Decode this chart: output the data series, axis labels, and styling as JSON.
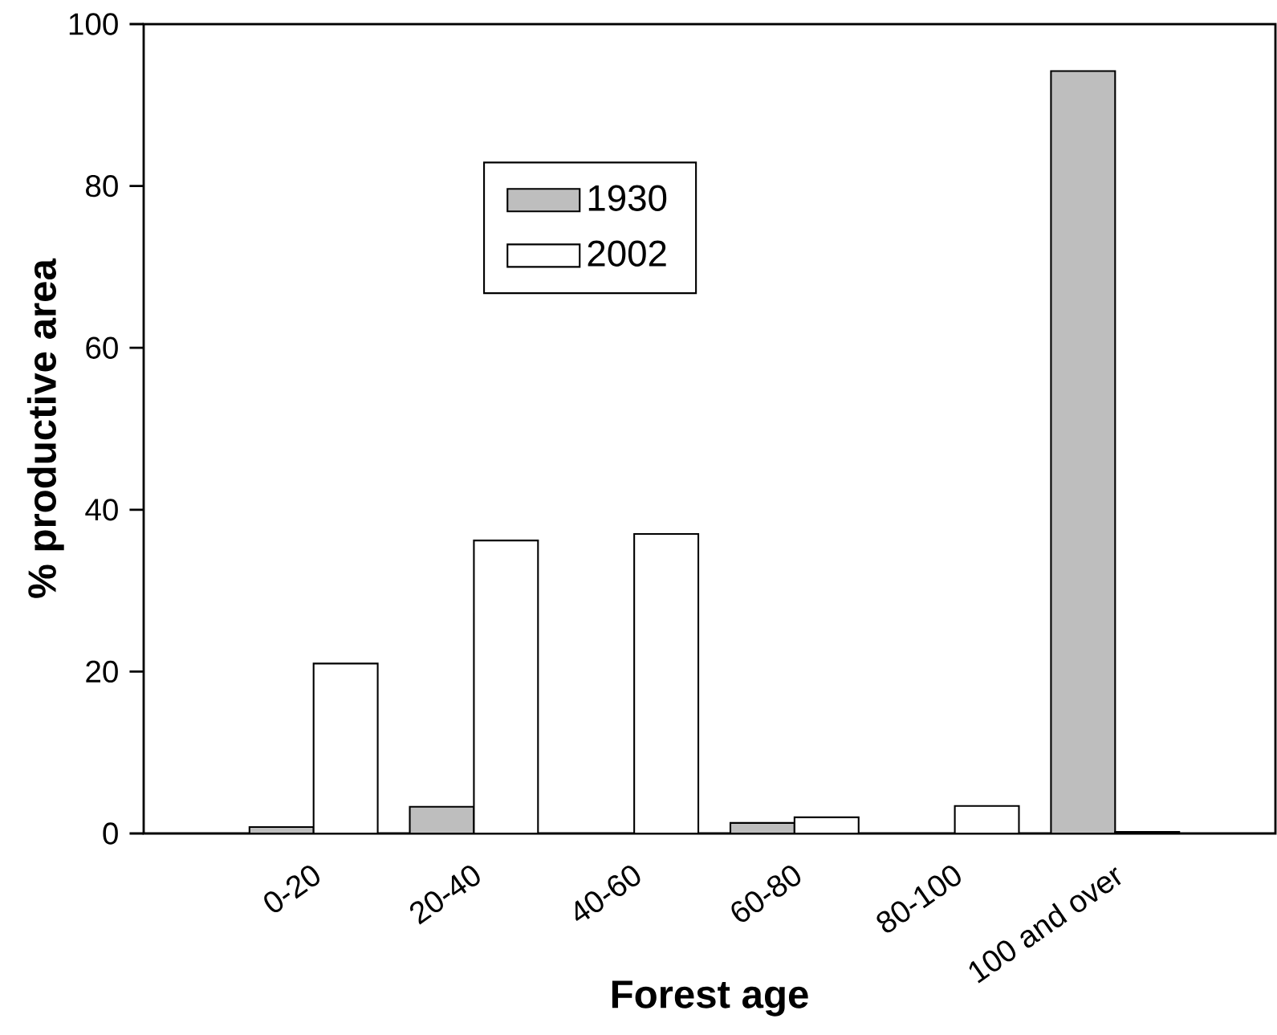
{
  "chart_data": {
    "type": "bar",
    "xlabel": "Forest age",
    "ylabel": "% productive area",
    "categories": [
      "0-20",
      "20-40",
      "40-60",
      "60-80",
      "80-100",
      "100 and over"
    ],
    "series": [
      {
        "name": "1930",
        "color": "#bebebe",
        "values": [
          0.8,
          3.3,
          0,
          1.3,
          0,
          94.2
        ]
      },
      {
        "name": "2002",
        "color": "#ffffff",
        "values": [
          21,
          36.2,
          37,
          2.0,
          3.4,
          0.2
        ]
      }
    ],
    "ylim": [
      0,
      100
    ],
    "yticks": [
      0,
      20,
      40,
      60,
      80,
      100
    ],
    "legend": "top left",
    "grid": false
  }
}
